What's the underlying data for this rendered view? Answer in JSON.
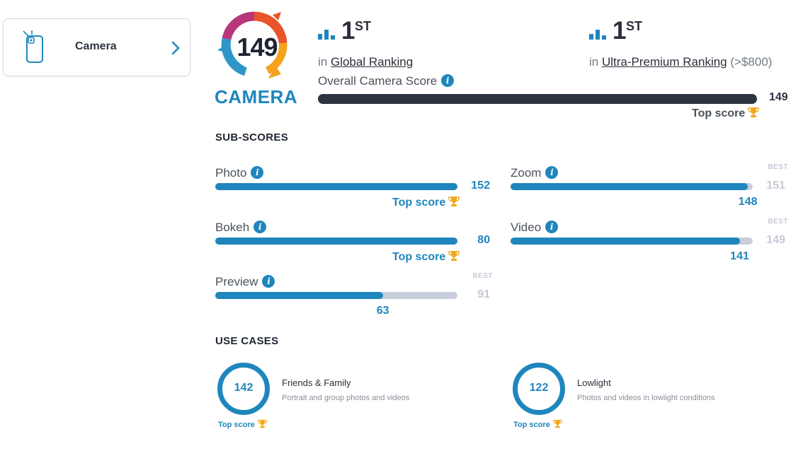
{
  "nav": {
    "label": "Camera",
    "icon": "phone-camera-icon",
    "chevron_icon": "chevron-right-icon"
  },
  "badge": {
    "score": "149",
    "label": "CAMERA"
  },
  "rankings": [
    {
      "icon": "bar-chart-icon",
      "rank": "1",
      "suffix": "ST",
      "prefix": "in",
      "link": "Global Ranking",
      "extra": ""
    },
    {
      "icon": "bar-chart-icon",
      "rank": "1",
      "suffix": "ST",
      "prefix": "in",
      "link": "Ultra-Premium Ranking",
      "extra": "(>$800)"
    }
  ],
  "overall": {
    "label": "Overall Camera Score",
    "value": "149",
    "fill_fraction": 1.0,
    "top_score_label": "Top score"
  },
  "sub_scores_title": "SUB-SCORES",
  "sub_scores": [
    {
      "label": "Photo",
      "value": "152",
      "fill_fraction": 1.0,
      "top_score": true,
      "top_score_label": "Top score",
      "best": ""
    },
    {
      "label": "Zoom",
      "value": "148",
      "fill_fraction": 0.98,
      "top_score": false,
      "best_label": "BEST",
      "best": "151"
    },
    {
      "label": "Bokeh",
      "value": "80",
      "fill_fraction": 1.0,
      "top_score": true,
      "top_score_label": "Top score",
      "best": ""
    },
    {
      "label": "Video",
      "value": "141",
      "fill_fraction": 0.946,
      "top_score": false,
      "best_label": "BEST",
      "best": "149"
    },
    {
      "label": "Preview",
      "value": "63",
      "fill_fraction": 0.692,
      "top_score": false,
      "best_label": "BEST",
      "best": "91"
    }
  ],
  "use_cases_title": "USE CASES",
  "use_cases": [
    {
      "value": "142",
      "title": "Friends & Family",
      "description": "Portrait and group photos and videos",
      "top_score_label": "Top score"
    },
    {
      "value": "122",
      "title": "Lowlight",
      "description": "Photos and videos in lowlight conditions",
      "top_score_label": "Top score"
    }
  ],
  "colors": {
    "accent": "#1f86bd",
    "dark_bar": "#2d3440",
    "track": "#c8cedb",
    "best_gray": "#c5cad4",
    "trophy": "#f2a81d"
  }
}
